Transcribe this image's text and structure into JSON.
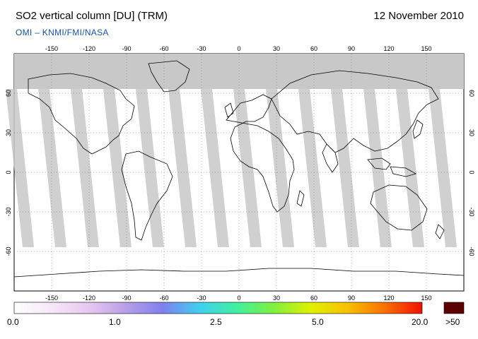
{
  "header": {
    "title": "SO2 vertical column [DU] (TRM)",
    "date": "12 November 2010",
    "credit": "OMI  –  KNMI/FMI/NASA"
  },
  "map": {
    "lon_ticks_top": [
      "-150",
      "-120",
      "-90",
      "-60",
      "-30",
      "0",
      "30",
      "60",
      "90",
      "120",
      "150"
    ],
    "lon_ticks_bottom": [
      "-150",
      "-120",
      "-90",
      "-60",
      "-30",
      "0",
      "30",
      "60",
      "90",
      "120",
      "150"
    ],
    "lat_ticks": [
      "60",
      "30",
      "0",
      "-30",
      "-60"
    ],
    "colors": {
      "no_data": "#c8c8c8",
      "polar_night": "#d4d4d4",
      "coast": "#000000"
    }
  },
  "colorbar": {
    "labels": [
      "0.0",
      "1.0",
      "2.5",
      "5.0",
      "20.0"
    ],
    "overflow_label": ">50",
    "overflow_color": "#5a0000",
    "gradient_colors": [
      "#ffffff",
      "#f6e8f8",
      "#e8c8f0",
      "#b8a0e8",
      "#8080f0",
      "#40d0f0",
      "#40f0a0",
      "#80f040",
      "#e0f000",
      "#f8c000",
      "#f87000",
      "#f01000"
    ]
  }
}
